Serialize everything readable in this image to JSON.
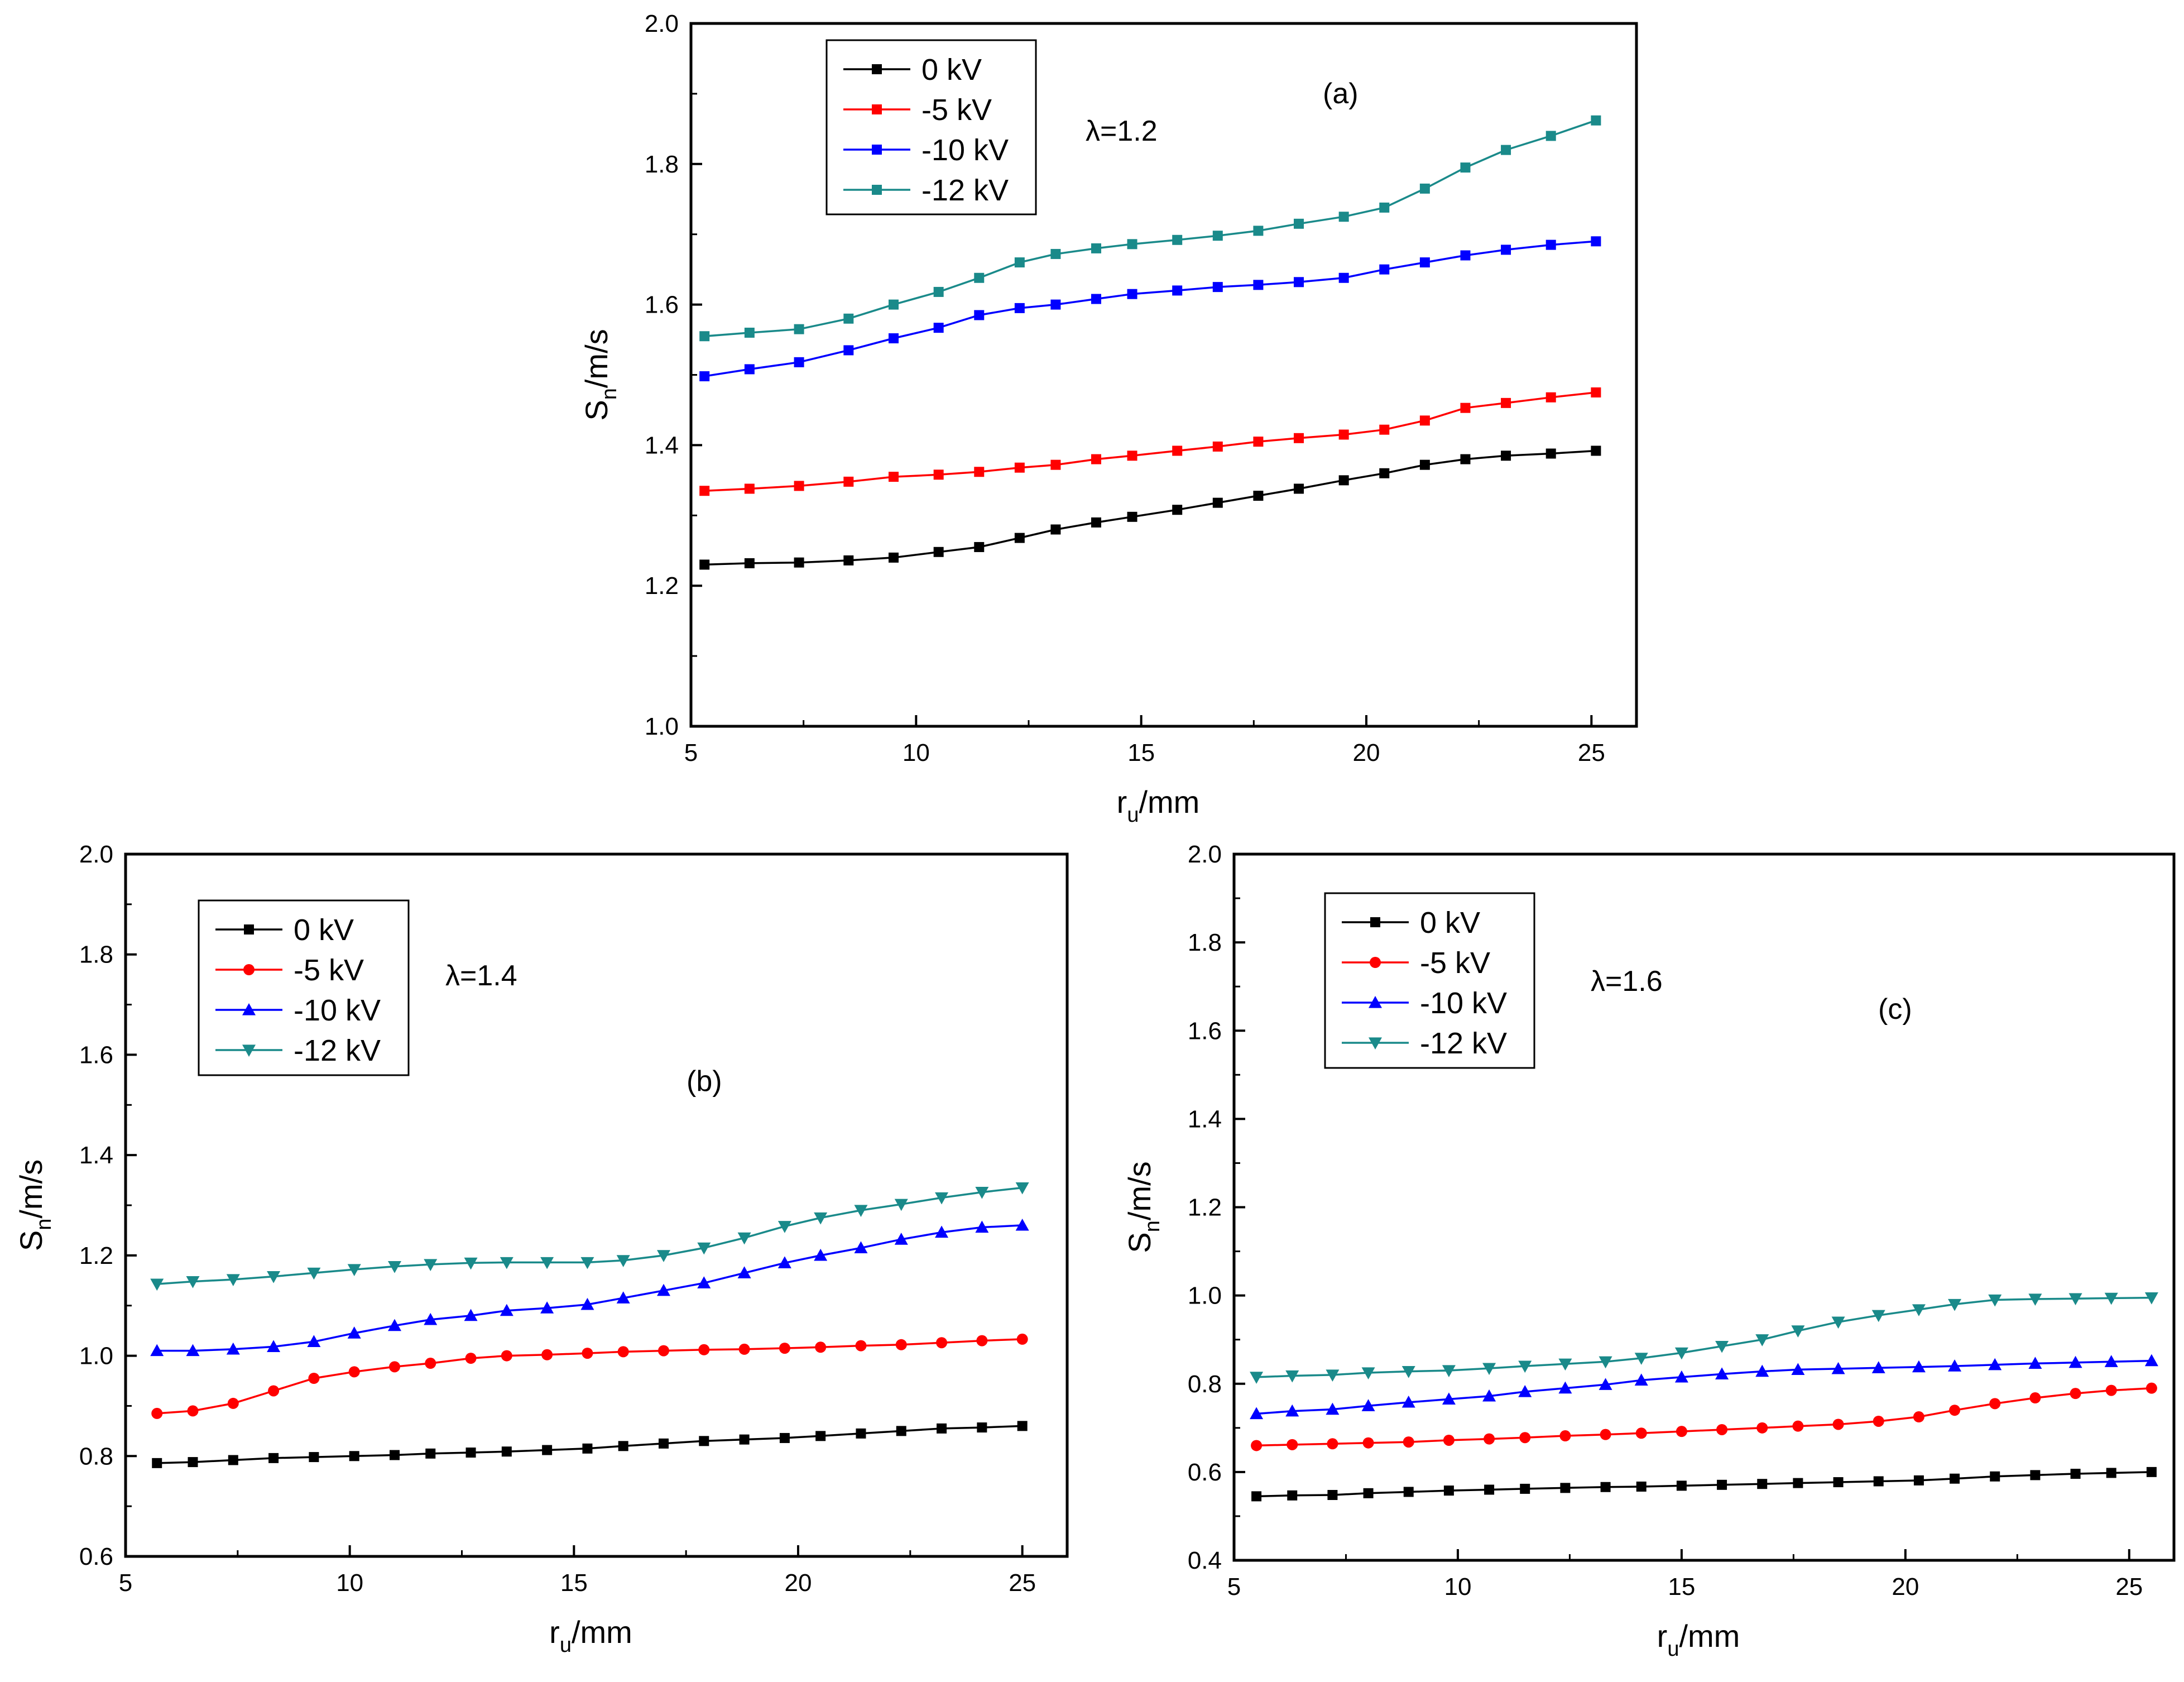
{
  "chart_data": [
    {
      "id": "a",
      "type": "line",
      "panel_label": "(a)",
      "annotation": "λ=1.2",
      "xlabel": "r",
      "xlabel_sub": "u",
      "xlabel_unit": "/mm",
      "ylabel": "S",
      "ylabel_sub": "n",
      "ylabel_unit": "/m/s",
      "xlim": [
        5,
        26
      ],
      "ylim": [
        1.0,
        2.0
      ],
      "xticks": [
        "5",
        "10",
        "15",
        "20",
        "25"
      ],
      "yticks": [
        "1.0",
        "1.2",
        "1.4",
        "1.6",
        "1.8",
        "2.0"
      ],
      "x": [
        5.3,
        6.3,
        7.4,
        8.5,
        9.5,
        10.5,
        11.4,
        12.3,
        13.1,
        14.0,
        14.8,
        15.8,
        16.7,
        17.6,
        18.5,
        19.5,
        20.4,
        21.3,
        22.2,
        23.1,
        24.1,
        25.1
      ],
      "series": [
        {
          "name": "0 kV",
          "color": "#000000",
          "marker": "square",
          "values": [
            1.23,
            1.232,
            1.233,
            1.236,
            1.24,
            1.248,
            1.255,
            1.268,
            1.28,
            1.29,
            1.298,
            1.308,
            1.318,
            1.328,
            1.338,
            1.35,
            1.36,
            1.372,
            1.38,
            1.385,
            1.388,
            1.392
          ]
        },
        {
          "name": "-5 kV",
          "color": "#ff0000",
          "marker": "square",
          "values": [
            1.335,
            1.338,
            1.342,
            1.348,
            1.355,
            1.358,
            1.362,
            1.368,
            1.372,
            1.38,
            1.385,
            1.392,
            1.398,
            1.405,
            1.41,
            1.415,
            1.422,
            1.435,
            1.453,
            1.46,
            1.468,
            1.475
          ]
        },
        {
          "name": "-10 kV",
          "color": "#0000ff",
          "marker": "square",
          "values": [
            1.498,
            1.508,
            1.518,
            1.535,
            1.552,
            1.567,
            1.585,
            1.595,
            1.6,
            1.608,
            1.615,
            1.62,
            1.625,
            1.628,
            1.632,
            1.638,
            1.65,
            1.66,
            1.67,
            1.678,
            1.685,
            1.69
          ]
        },
        {
          "name": "-12 kV",
          "color": "#1a8a8a",
          "marker": "square",
          "values": [
            1.555,
            1.56,
            1.565,
            1.58,
            1.6,
            1.618,
            1.638,
            1.66,
            1.672,
            1.68,
            1.686,
            1.692,
            1.698,
            1.705,
            1.715,
            1.725,
            1.738,
            1.765,
            1.795,
            1.82,
            1.84,
            1.862
          ]
        }
      ]
    },
    {
      "id": "b",
      "type": "line",
      "panel_label": "(b)",
      "annotation": "λ=1.4",
      "xlabel": "r",
      "xlabel_sub": "u",
      "xlabel_unit": "/mm",
      "ylabel": "S",
      "ylabel_sub": "n",
      "ylabel_unit": "/m/s",
      "xlim": [
        5,
        26
      ],
      "ylim": [
        0.6,
        2.0
      ],
      "xticks": [
        "5",
        "10",
        "15",
        "20",
        "25"
      ],
      "yticks": [
        "0.6",
        "0.8",
        "1.0",
        "1.2",
        "1.4",
        "1.6",
        "1.8",
        "2.0"
      ],
      "x": [
        5.7,
        6.5,
        7.4,
        8.3,
        9.2,
        10.1,
        11.0,
        11.8,
        12.7,
        13.5,
        14.4,
        15.3,
        16.1,
        17.0,
        17.9,
        18.8,
        19.7,
        20.5,
        21.4,
        22.3,
        23.2,
        24.1,
        25.0
      ],
      "series": [
        {
          "name": "0 kV",
          "color": "#000000",
          "marker": "square",
          "values": [
            0.786,
            0.788,
            0.792,
            0.796,
            0.798,
            0.8,
            0.802,
            0.805,
            0.807,
            0.809,
            0.812,
            0.815,
            0.82,
            0.825,
            0.83,
            0.833,
            0.836,
            0.84,
            0.845,
            0.85,
            0.855,
            0.857,
            0.86
          ]
        },
        {
          "name": "-5 kV",
          "color": "#ff0000",
          "marker": "circle",
          "values": [
            0.885,
            0.89,
            0.905,
            0.93,
            0.955,
            0.968,
            0.978,
            0.985,
            0.995,
            1.0,
            1.002,
            1.005,
            1.008,
            1.01,
            1.012,
            1.013,
            1.015,
            1.017,
            1.02,
            1.022,
            1.026,
            1.03,
            1.033
          ]
        },
        {
          "name": "-10 kV",
          "color": "#0000ff",
          "marker": "triangle-up",
          "values": [
            1.01,
            1.01,
            1.013,
            1.018,
            1.028,
            1.045,
            1.06,
            1.072,
            1.08,
            1.09,
            1.095,
            1.102,
            1.115,
            1.13,
            1.145,
            1.165,
            1.185,
            1.2,
            1.215,
            1.232,
            1.246,
            1.256,
            1.26
          ]
        },
        {
          "name": "-12 kV",
          "color": "#1a8a8a",
          "marker": "triangle-down",
          "values": [
            1.143,
            1.148,
            1.152,
            1.158,
            1.165,
            1.172,
            1.178,
            1.182,
            1.185,
            1.186,
            1.186,
            1.186,
            1.19,
            1.2,
            1.215,
            1.235,
            1.258,
            1.275,
            1.29,
            1.302,
            1.315,
            1.326,
            1.335
          ]
        }
      ]
    },
    {
      "id": "c",
      "type": "line",
      "panel_label": "(c)",
      "annotation": "λ=1.6",
      "xlabel": "r",
      "xlabel_sub": "u",
      "xlabel_unit": "/mm",
      "ylabel": "S",
      "ylabel_sub": "n",
      "ylabel_unit": "/m/s",
      "xlim": [
        5,
        26
      ],
      "ylim": [
        0.4,
        2.0
      ],
      "xticks": [
        "5",
        "10",
        "15",
        "20",
        "25"
      ],
      "yticks": [
        "0.4",
        "0.6",
        "0.8",
        "1.0",
        "1.2",
        "1.4",
        "1.6",
        "1.8",
        "2.0"
      ],
      "x": [
        5.5,
        6.3,
        7.2,
        8.0,
        8.9,
        9.8,
        10.7,
        11.5,
        12.4,
        13.3,
        14.1,
        15.0,
        15.9,
        16.8,
        17.6,
        18.5,
        19.4,
        20.3,
        21.1,
        22.0,
        22.9,
        23.8,
        24.6,
        25.5
      ],
      "series": [
        {
          "name": "0 kV",
          "color": "#000000",
          "marker": "square",
          "values": [
            0.545,
            0.547,
            0.548,
            0.552,
            0.555,
            0.558,
            0.56,
            0.562,
            0.564,
            0.566,
            0.567,
            0.569,
            0.571,
            0.573,
            0.575,
            0.577,
            0.579,
            0.581,
            0.585,
            0.59,
            0.593,
            0.596,
            0.598,
            0.6
          ]
        },
        {
          "name": "-5 kV",
          "color": "#ff0000",
          "marker": "circle",
          "values": [
            0.66,
            0.662,
            0.664,
            0.666,
            0.668,
            0.672,
            0.675,
            0.678,
            0.682,
            0.685,
            0.688,
            0.692,
            0.696,
            0.7,
            0.704,
            0.708,
            0.715,
            0.725,
            0.74,
            0.755,
            0.768,
            0.778,
            0.785,
            0.79
          ]
        },
        {
          "name": "-10 kV",
          "color": "#0000ff",
          "marker": "triangle-up",
          "values": [
            0.732,
            0.738,
            0.742,
            0.75,
            0.758,
            0.765,
            0.772,
            0.782,
            0.79,
            0.798,
            0.808,
            0.815,
            0.822,
            0.828,
            0.832,
            0.834,
            0.836,
            0.838,
            0.84,
            0.843,
            0.846,
            0.848,
            0.85,
            0.852
          ]
        },
        {
          "name": "-12 kV",
          "color": "#1a8a8a",
          "marker": "triangle-down",
          "values": [
            0.815,
            0.818,
            0.82,
            0.825,
            0.828,
            0.83,
            0.835,
            0.84,
            0.845,
            0.85,
            0.858,
            0.87,
            0.885,
            0.9,
            0.92,
            0.94,
            0.955,
            0.968,
            0.98,
            0.99,
            0.992,
            0.993,
            0.994,
            0.995
          ]
        }
      ]
    }
  ]
}
